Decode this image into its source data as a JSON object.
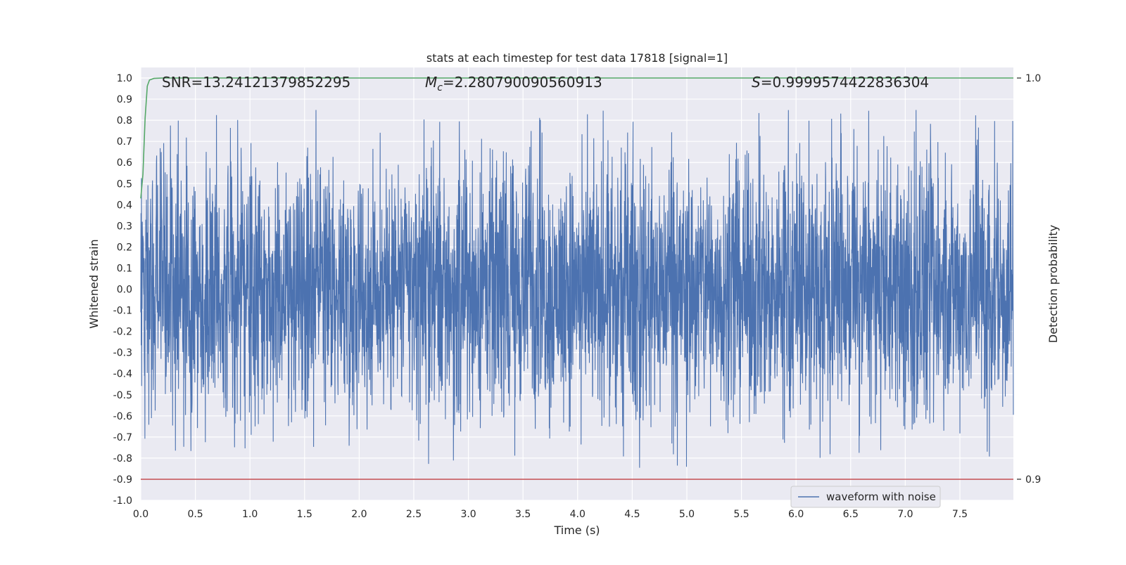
{
  "chart_data": {
    "type": "line",
    "title": "stats at each timestep for test data 17818 [signal=1]",
    "xlabel": "Time (s)",
    "ylabel": "Whitened strain",
    "ylabel_right": "Detection probability",
    "xlim": [
      0.0,
      7.99
    ],
    "ylim": [
      -1.0,
      1.05
    ],
    "ylim_right": [
      0.9,
      1.0
    ],
    "x_ticks": [
      "0.0",
      "0.5",
      "1.0",
      "1.5",
      "2.0",
      "2.5",
      "3.0",
      "3.5",
      "4.0",
      "4.5",
      "5.0",
      "5.5",
      "6.0",
      "6.5",
      "7.0",
      "7.5"
    ],
    "y_ticks": [
      "-1.0",
      "-0.9",
      "-0.8",
      "-0.7",
      "-0.6",
      "-0.5",
      "-0.4",
      "-0.3",
      "-0.2",
      "-0.1",
      "0.0",
      "0.1",
      "0.2",
      "0.3",
      "0.4",
      "0.5",
      "0.6",
      "0.7",
      "0.8",
      "0.9",
      "1.0"
    ],
    "y_ticks_right": [
      "0.9",
      "1.0"
    ],
    "grid": true,
    "legend_position": "lower-right",
    "annotations": {
      "snr": "SNR=13.24121379852295",
      "mc_symbol": "M",
      "mc_sub": "c",
      "mc_value": "=2.280790090560913",
      "s_symbol": "S",
      "s_value": "=0.9999574422836304"
    },
    "series": [
      {
        "name": "waveform with noise",
        "color": "#4c72b0",
        "description": "dense noisy whitened strain, roughly ±0.45 core band with spikes up to 0.86 and down to -0.91"
      },
      {
        "color": "#55a868",
        "axis": "right",
        "x": [
          0.0,
          0.02,
          0.04,
          0.06,
          0.08,
          0.12,
          0.2,
          1.0,
          7.99
        ],
        "values": [
          0.97,
          0.976,
          0.99,
          0.998,
          0.9995,
          0.9999,
          1.0,
          1.0,
          1.0
        ]
      },
      {
        "color": "#c44e52",
        "axis": "right",
        "x": [
          0.0,
          7.99
        ],
        "values": [
          0.9,
          0.9
        ]
      }
    ]
  }
}
